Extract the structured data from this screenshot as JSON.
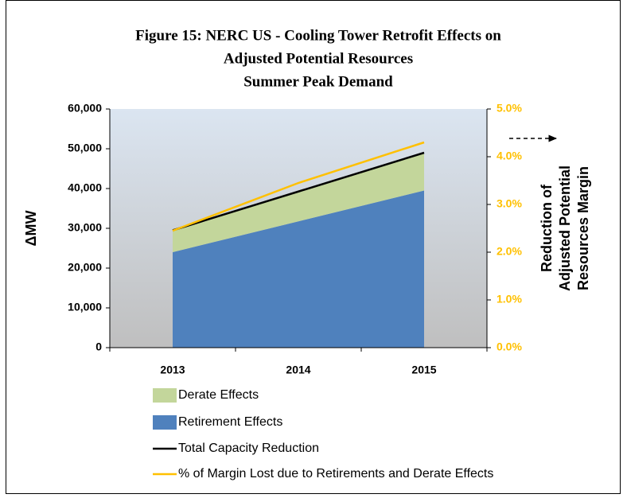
{
  "chart_data": {
    "type": "area",
    "title": [
      "Figure 15: NERC US -  Cooling Tower Retrofit Effects on",
      "Adjusted Potential Resources",
      "Summer Peak Demand"
    ],
    "ylabel": "ΔMW",
    "y2label": [
      "Reduction of",
      "Adjusted Potential",
      "Resources Margin"
    ],
    "categories": [
      "2013",
      "2014",
      "2015"
    ],
    "series": [
      {
        "name": "Derate Effects",
        "type": "area",
        "color": "#c3d69b",
        "values": [
          5500,
          7500,
          9500
        ]
      },
      {
        "name": "Retirement Effects",
        "type": "area",
        "color": "#4f81bd",
        "values": [
          24000,
          31750,
          39500
        ]
      },
      {
        "name": "Total Capacity Reduction",
        "type": "line",
        "color": "#000000",
        "values": [
          29500,
          39250,
          49000
        ]
      },
      {
        "name": "% of Margin Lost due to Retirements and Derate Effects",
        "type": "line",
        "color": "#ffc000",
        "axis": "y2",
        "values": [
          2.45,
          3.45,
          4.3
        ]
      }
    ],
    "ylim": [
      0,
      60000
    ],
    "yticks": [
      0,
      {
        "value": 10000,
        "label": "10,000"
      },
      {
        "value": 20000,
        "label": "20,000"
      },
      {
        "value": 30000,
        "label": "30,000"
      },
      {
        "value": 40000,
        "label": "40,000"
      },
      {
        "value": 50000,
        "label": "50,000"
      },
      {
        "value": 60000,
        "label": "60,000"
      }
    ],
    "y2lim": [
      0,
      5
    ],
    "y2ticks": [
      {
        "value": 0,
        "label": "0.0%"
      },
      {
        "value": 1,
        "label": "1.0%"
      },
      {
        "value": 2,
        "label": "2.0%"
      },
      {
        "value": 3,
        "label": "3.0%"
      },
      {
        "value": 4,
        "label": "4.0%"
      },
      {
        "value": 5,
        "label": "5.0%"
      }
    ],
    "y2color": "#ffc000"
  }
}
